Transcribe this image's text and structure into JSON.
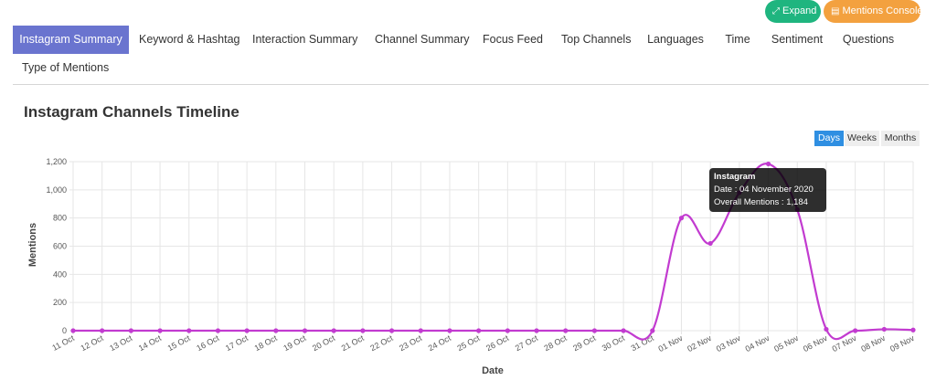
{
  "actions": {
    "expand_label": "Expand",
    "console_label": "Mentions Console",
    "expand_color": "#1fb57f",
    "console_color": "#f3a13f"
  },
  "tabs": [
    {
      "label": "Instagram Summary",
      "active": true
    },
    {
      "label": "Keyword & Hashtag"
    },
    {
      "label": "Interaction Summary"
    },
    {
      "label": "Channel Summary"
    },
    {
      "label": "Focus Feed"
    },
    {
      "label": "Top Channels"
    },
    {
      "label": "Languages"
    },
    {
      "label": "Time"
    },
    {
      "label": "Sentiment"
    },
    {
      "label": "Questions"
    },
    {
      "label": "Type of Mentions"
    }
  ],
  "section": {
    "title": "Instagram Channels Timeline"
  },
  "range": {
    "options": [
      "Days",
      "Weeks",
      "Months"
    ],
    "selected": "Days"
  },
  "tooltip": {
    "title": "Instagram",
    "date_line": "Date : 04 November 2020",
    "mentions_line": "Overall Mentions : 1,184"
  },
  "chart_data": {
    "type": "line",
    "xlabel": "Date",
    "ylabel": "Mentions",
    "ylim": [
      0,
      1200
    ],
    "yticks": [
      "0",
      "200",
      "400",
      "600",
      "800",
      "1,000",
      "1,200"
    ],
    "grid": true,
    "line_color": "#c23bd0",
    "categories": [
      "11 Oct",
      "12 Oct",
      "13 Oct",
      "14 Oct",
      "15 Oct",
      "16 Oct",
      "17 Oct",
      "18 Oct",
      "19 Oct",
      "20 Oct",
      "21 Oct",
      "22 Oct",
      "23 Oct",
      "24 Oct",
      "25 Oct",
      "26 Oct",
      "27 Oct",
      "28 Oct",
      "29 Oct",
      "30 Oct",
      "31 Oct",
      "01 Nov",
      "02 Nov",
      "03 Nov",
      "04 Nov",
      "05 Nov",
      "06 Nov",
      "07 Nov",
      "08 Nov",
      "09 Nov"
    ],
    "series": [
      {
        "name": "Instagram",
        "values": [
          0,
          0,
          0,
          0,
          0,
          0,
          0,
          0,
          0,
          0,
          0,
          0,
          0,
          0,
          0,
          0,
          0,
          0,
          0,
          0,
          0,
          800,
          620,
          980,
          1184,
          860,
          10,
          0,
          10,
          5
        ]
      }
    ]
  }
}
